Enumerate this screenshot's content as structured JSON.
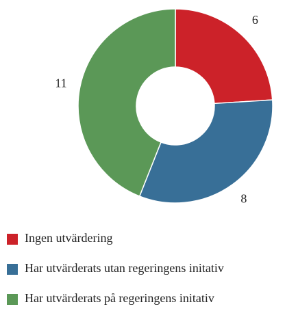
{
  "chart_data": {
    "type": "donut",
    "categories": [
      "Ingen utvärdering",
      "Har utvärderats utan regeringens initativ",
      "Har utvärderats på regeringens initativ"
    ],
    "values": [
      6,
      8,
      11
    ],
    "colors": [
      "#cc2229",
      "#386f97",
      "#5b9857"
    ],
    "legend": "bottom"
  }
}
